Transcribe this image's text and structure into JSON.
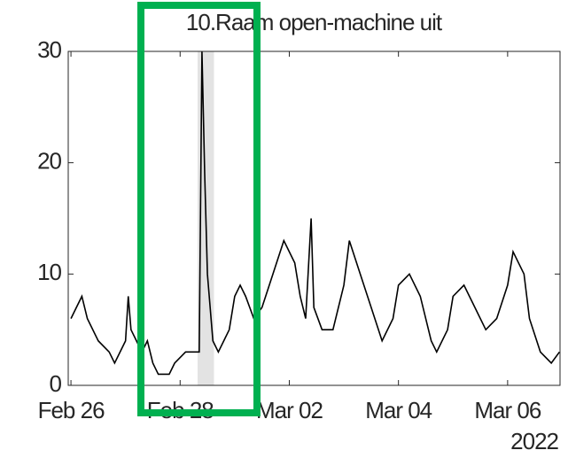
{
  "chart_data": {
    "type": "line",
    "title": "10.Raam open-machine uit",
    "x_year_label": "2022",
    "x": [
      0,
      0.1,
      0.2,
      0.3,
      0.5,
      0.7,
      0.8,
      1.0,
      1.05,
      1.1,
      1.2,
      1.3,
      1.4,
      1.5,
      1.6,
      1.8,
      1.9,
      2.1,
      2.35,
      2.4,
      2.45,
      2.5,
      2.6,
      2.7,
      2.9,
      3.0,
      3.1,
      3.2,
      3.35,
      3.5,
      3.7,
      3.9,
      4.1,
      4.2,
      4.3,
      4.4,
      4.45,
      4.6,
      4.8,
      5.0,
      5.1,
      5.3,
      5.5,
      5.7,
      5.9,
      6.0,
      6.2,
      6.4,
      6.6,
      6.7,
      6.9,
      7.0,
      7.2,
      7.4,
      7.6,
      7.8,
      8.0,
      8.1,
      8.3,
      8.4,
      8.6,
      8.8,
      8.95
    ],
    "series": [
      {
        "name": "Raam open-machine uit",
        "color": "#000000",
        "values": [
          6,
          7,
          8,
          6,
          4,
          3,
          2,
          4,
          8,
          5,
          4,
          3,
          4,
          2,
          1,
          1,
          2,
          3,
          3,
          30,
          19,
          10,
          4,
          3,
          5,
          8,
          9,
          8,
          6,
          7,
          10,
          13,
          11,
          8,
          6,
          15,
          7,
          5,
          5,
          9,
          13,
          10,
          7,
          4,
          6,
          9,
          10,
          8,
          4,
          3,
          5,
          8,
          9,
          7,
          5,
          6,
          9,
          12,
          10,
          6,
          3,
          2,
          3
        ]
      }
    ],
    "highlight_x": [
      2.32,
      2.62
    ],
    "xlim": [
      -0.05,
      8.96
    ],
    "xticks": [
      {
        "value": 0,
        "label": "Feb 26"
      },
      {
        "value": 2,
        "label": "Feb 28"
      },
      {
        "value": 4,
        "label": "Mar 02"
      },
      {
        "value": 6,
        "label": "Mar 04"
      },
      {
        "value": 8,
        "label": "Mar 06"
      }
    ],
    "ylim": [
      0,
      30
    ],
    "yticks": [
      0,
      10,
      20,
      30
    ]
  }
}
